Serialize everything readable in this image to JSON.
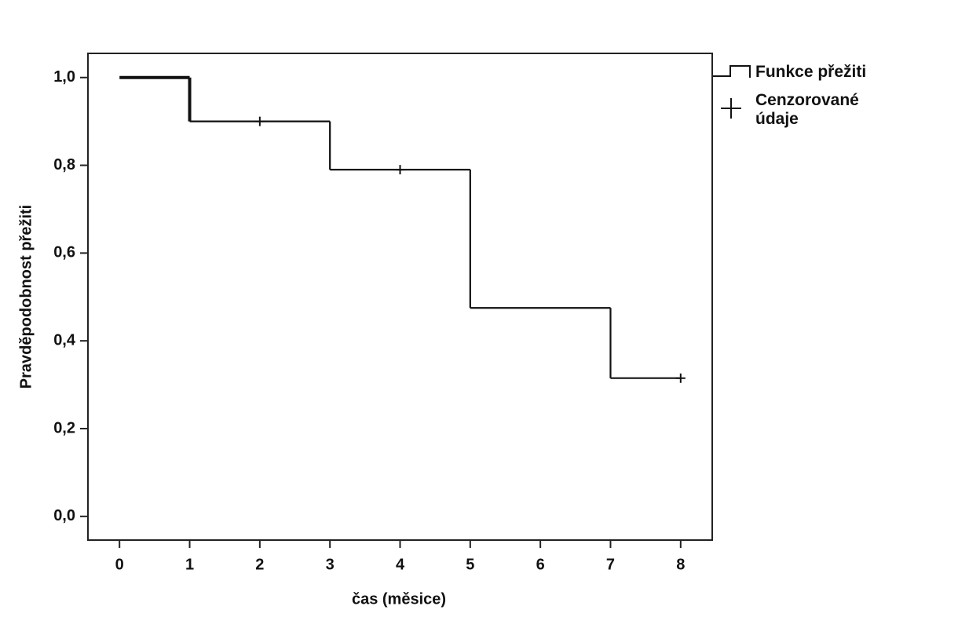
{
  "chart_data": {
    "type": "step",
    "x_label": "čas (měsice)",
    "y_label": "Pravděpodobnost přežiti",
    "xlim": [
      -0.45,
      8.45
    ],
    "xticks": [
      0,
      1,
      2,
      3,
      4,
      5,
      6,
      7,
      8
    ],
    "ylim": [
      -0.054,
      1.055
    ],
    "yticks": [
      {
        "value": 0,
        "label": "0,0"
      },
      {
        "value": 0.2,
        "label": "0,2"
      },
      {
        "value": 0.4,
        "label": "0,4"
      },
      {
        "value": 0.6,
        "label": "0,6"
      },
      {
        "value": 0.8,
        "label": "0,8"
      },
      {
        "value": 1,
        "label": "1,0"
      }
    ],
    "series": [
      {
        "name": "Funkce přežiti",
        "color": "#111111",
        "x": [
          0,
          1,
          3,
          5,
          7
        ],
        "values": [
          1,
          0.9,
          0.79,
          0.475,
          0.315
        ]
      },
      {
        "name": "Cenzorované údaje",
        "color": "#111111",
        "marker": "+",
        "x": [
          2,
          4,
          8
        ],
        "values": [
          0.9,
          0.79,
          0.315
        ]
      }
    ]
  }
}
